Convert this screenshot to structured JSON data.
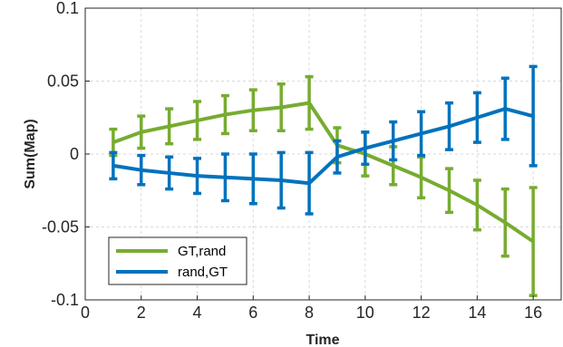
{
  "chart_data": {
    "type": "line",
    "title": "",
    "xlabel": "Time",
    "ylabel": "Sum(Map)",
    "xlim": [
      0,
      17
    ],
    "ylim": [
      -0.1,
      0.1
    ],
    "xticks": [
      0,
      2,
      4,
      6,
      8,
      10,
      12,
      14,
      16
    ],
    "yticks": [
      -0.1,
      -0.05,
      0,
      0.05,
      0.1
    ],
    "xtick_labels": [
      "0",
      "2",
      "4",
      "6",
      "8",
      "10",
      "12",
      "14",
      "16"
    ],
    "ytick_labels": [
      "-0.1",
      "-0.05",
      "0",
      "0.05",
      "0.1"
    ],
    "grid": true,
    "legend_position": "bottom-left",
    "x": [
      1,
      2,
      3,
      4,
      5,
      6,
      7,
      8,
      9,
      10,
      11,
      12,
      13,
      14,
      15,
      16
    ],
    "series": [
      {
        "name": "GT,rand",
        "color": "#77ac30",
        "values": [
          0.008,
          0.015,
          0.019,
          0.023,
          0.027,
          0.03,
          0.032,
          0.035,
          0.006,
          0.0,
          -0.008,
          -0.016,
          -0.025,
          -0.035,
          -0.047,
          -0.06
        ],
        "error": [
          0.009,
          0.011,
          0.012,
          0.013,
          0.013,
          0.014,
          0.016,
          0.018,
          0.012,
          0.015,
          0.013,
          0.014,
          0.015,
          0.017,
          0.023,
          0.037
        ]
      },
      {
        "name": "rand,GT",
        "color": "#0072bd",
        "values": [
          -0.008,
          -0.011,
          -0.013,
          -0.015,
          -0.016,
          -0.017,
          -0.018,
          -0.02,
          -0.002,
          0.004,
          0.009,
          0.014,
          0.019,
          0.025,
          0.031,
          0.026
        ],
        "error": [
          0.009,
          0.01,
          0.011,
          0.012,
          0.016,
          0.017,
          0.019,
          0.021,
          0.011,
          0.011,
          0.013,
          0.015,
          0.016,
          0.017,
          0.021,
          0.034
        ]
      }
    ]
  }
}
